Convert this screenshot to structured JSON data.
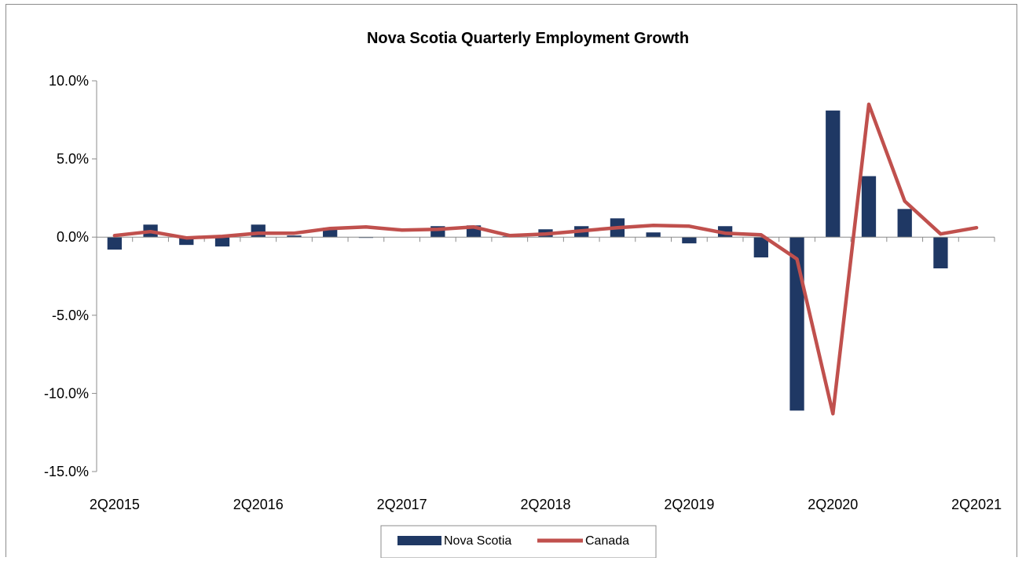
{
  "chart_data": {
    "type": "bar",
    "title": "Nova Scotia Quarterly Employment Growth",
    "xlabel": "",
    "ylabel": "",
    "ylim": [
      -15.0,
      10.0
    ],
    "y_ticks": [
      10.0,
      5.0,
      0.0,
      -5.0,
      -10.0,
      -15.0
    ],
    "y_tick_labels": [
      "10.0%",
      "5.0%",
      "0.0%",
      "-5.0%",
      "-10.0%",
      "-15.0%"
    ],
    "categories": [
      "2Q2015",
      "3Q2015",
      "4Q2015",
      "1Q2016",
      "2Q2016",
      "3Q2016",
      "4Q2016",
      "1Q2017",
      "2Q2017",
      "3Q2017",
      "4Q2017",
      "1Q2018",
      "2Q2018",
      "3Q2018",
      "4Q2018",
      "1Q2019",
      "2Q2019",
      "3Q2019",
      "4Q2019",
      "1Q2020",
      "2Q2020",
      "3Q2020",
      "4Q2020",
      "1Q2021",
      "2Q2021"
    ],
    "x_tick_labels_shown": [
      "2Q2015",
      "2Q2016",
      "2Q2017",
      "2Q2018",
      "2Q2019",
      "2Q2020",
      "2Q2021"
    ],
    "grid": false,
    "legend_position": "bottom",
    "series": [
      {
        "name": "Nova Scotia",
        "type": "bar",
        "color": "#1f3864",
        "values": [
          -0.8,
          0.8,
          -0.5,
          -0.6,
          0.8,
          0.1,
          0.6,
          -0.05,
          0.0,
          0.7,
          0.75,
          0.05,
          0.5,
          0.7,
          1.2,
          0.3,
          -0.4,
          0.7,
          -1.3,
          -11.1,
          8.1,
          3.9,
          1.8,
          -2.0,
          0.0
        ]
      },
      {
        "name": "Canada",
        "type": "line",
        "color": "#c0504d",
        "values": [
          0.1,
          0.35,
          -0.05,
          0.05,
          0.25,
          0.25,
          0.55,
          0.65,
          0.45,
          0.5,
          0.65,
          0.1,
          0.2,
          0.4,
          0.6,
          0.75,
          0.7,
          0.25,
          0.15,
          -1.4,
          -11.3,
          8.5,
          2.3,
          0.2,
          0.6
        ]
      }
    ]
  }
}
